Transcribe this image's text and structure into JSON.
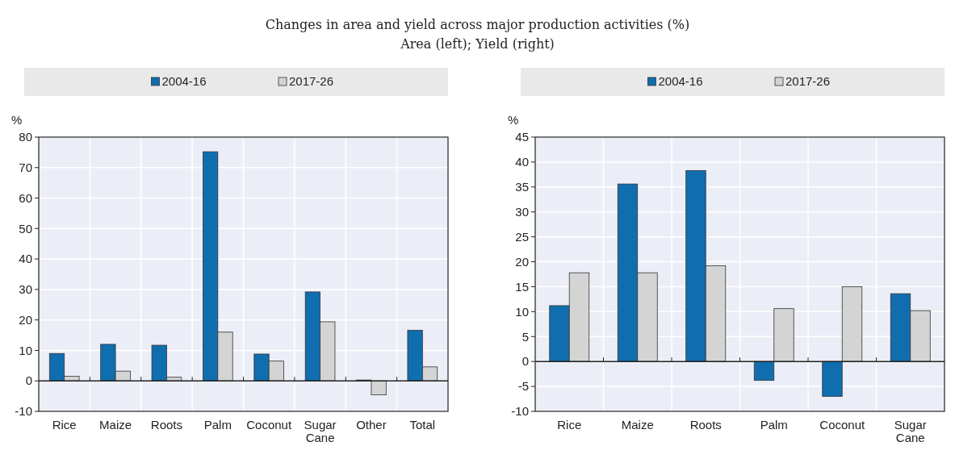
{
  "chart_data": [
    {
      "type": "bar",
      "title": "Changes in area and yield across major production activities (%)",
      "subtitle": "Area (left); Yield (right)",
      "ylabel": "%",
      "categories": [
        "Rice",
        "Maize",
        "Roots",
        "Palm",
        "Coconut",
        "Sugar Cane",
        "Other",
        "Total"
      ],
      "series": [
        {
          "name": "2004-16",
          "color": "#106eaf",
          "values": [
            9,
            12,
            11.7,
            75.2,
            8.8,
            29.2,
            0.3,
            16.6
          ]
        },
        {
          "name": "2017-26",
          "color": "#d4d4d4",
          "values": [
            1.5,
            3.2,
            1.2,
            16,
            6.5,
            19.4,
            -4.6,
            4.6
          ]
        }
      ],
      "ylim": [
        -10,
        80
      ],
      "yticks": [
        -10,
        0,
        10,
        20,
        30,
        40,
        50,
        60,
        70,
        80
      ],
      "grid": true,
      "legend": "top"
    },
    {
      "type": "bar",
      "ylabel": "%",
      "categories": [
        "Rice",
        "Maize",
        "Roots",
        "Palm",
        "Coconut",
        "Sugar Cane"
      ],
      "series": [
        {
          "name": "2004-16",
          "color": "#106eaf",
          "values": [
            11.2,
            35.6,
            38.3,
            -3.8,
            -7,
            13.6
          ]
        },
        {
          "name": "2017-26",
          "color": "#d4d4d4",
          "values": [
            17.8,
            17.8,
            19.2,
            10.6,
            15,
            10.2
          ]
        }
      ],
      "ylim": [
        -10,
        45
      ],
      "yticks": [
        -10,
        -5,
        0,
        5,
        10,
        15,
        20,
        25,
        30,
        35,
        40,
        45
      ],
      "grid": true,
      "legend": "top"
    }
  ]
}
